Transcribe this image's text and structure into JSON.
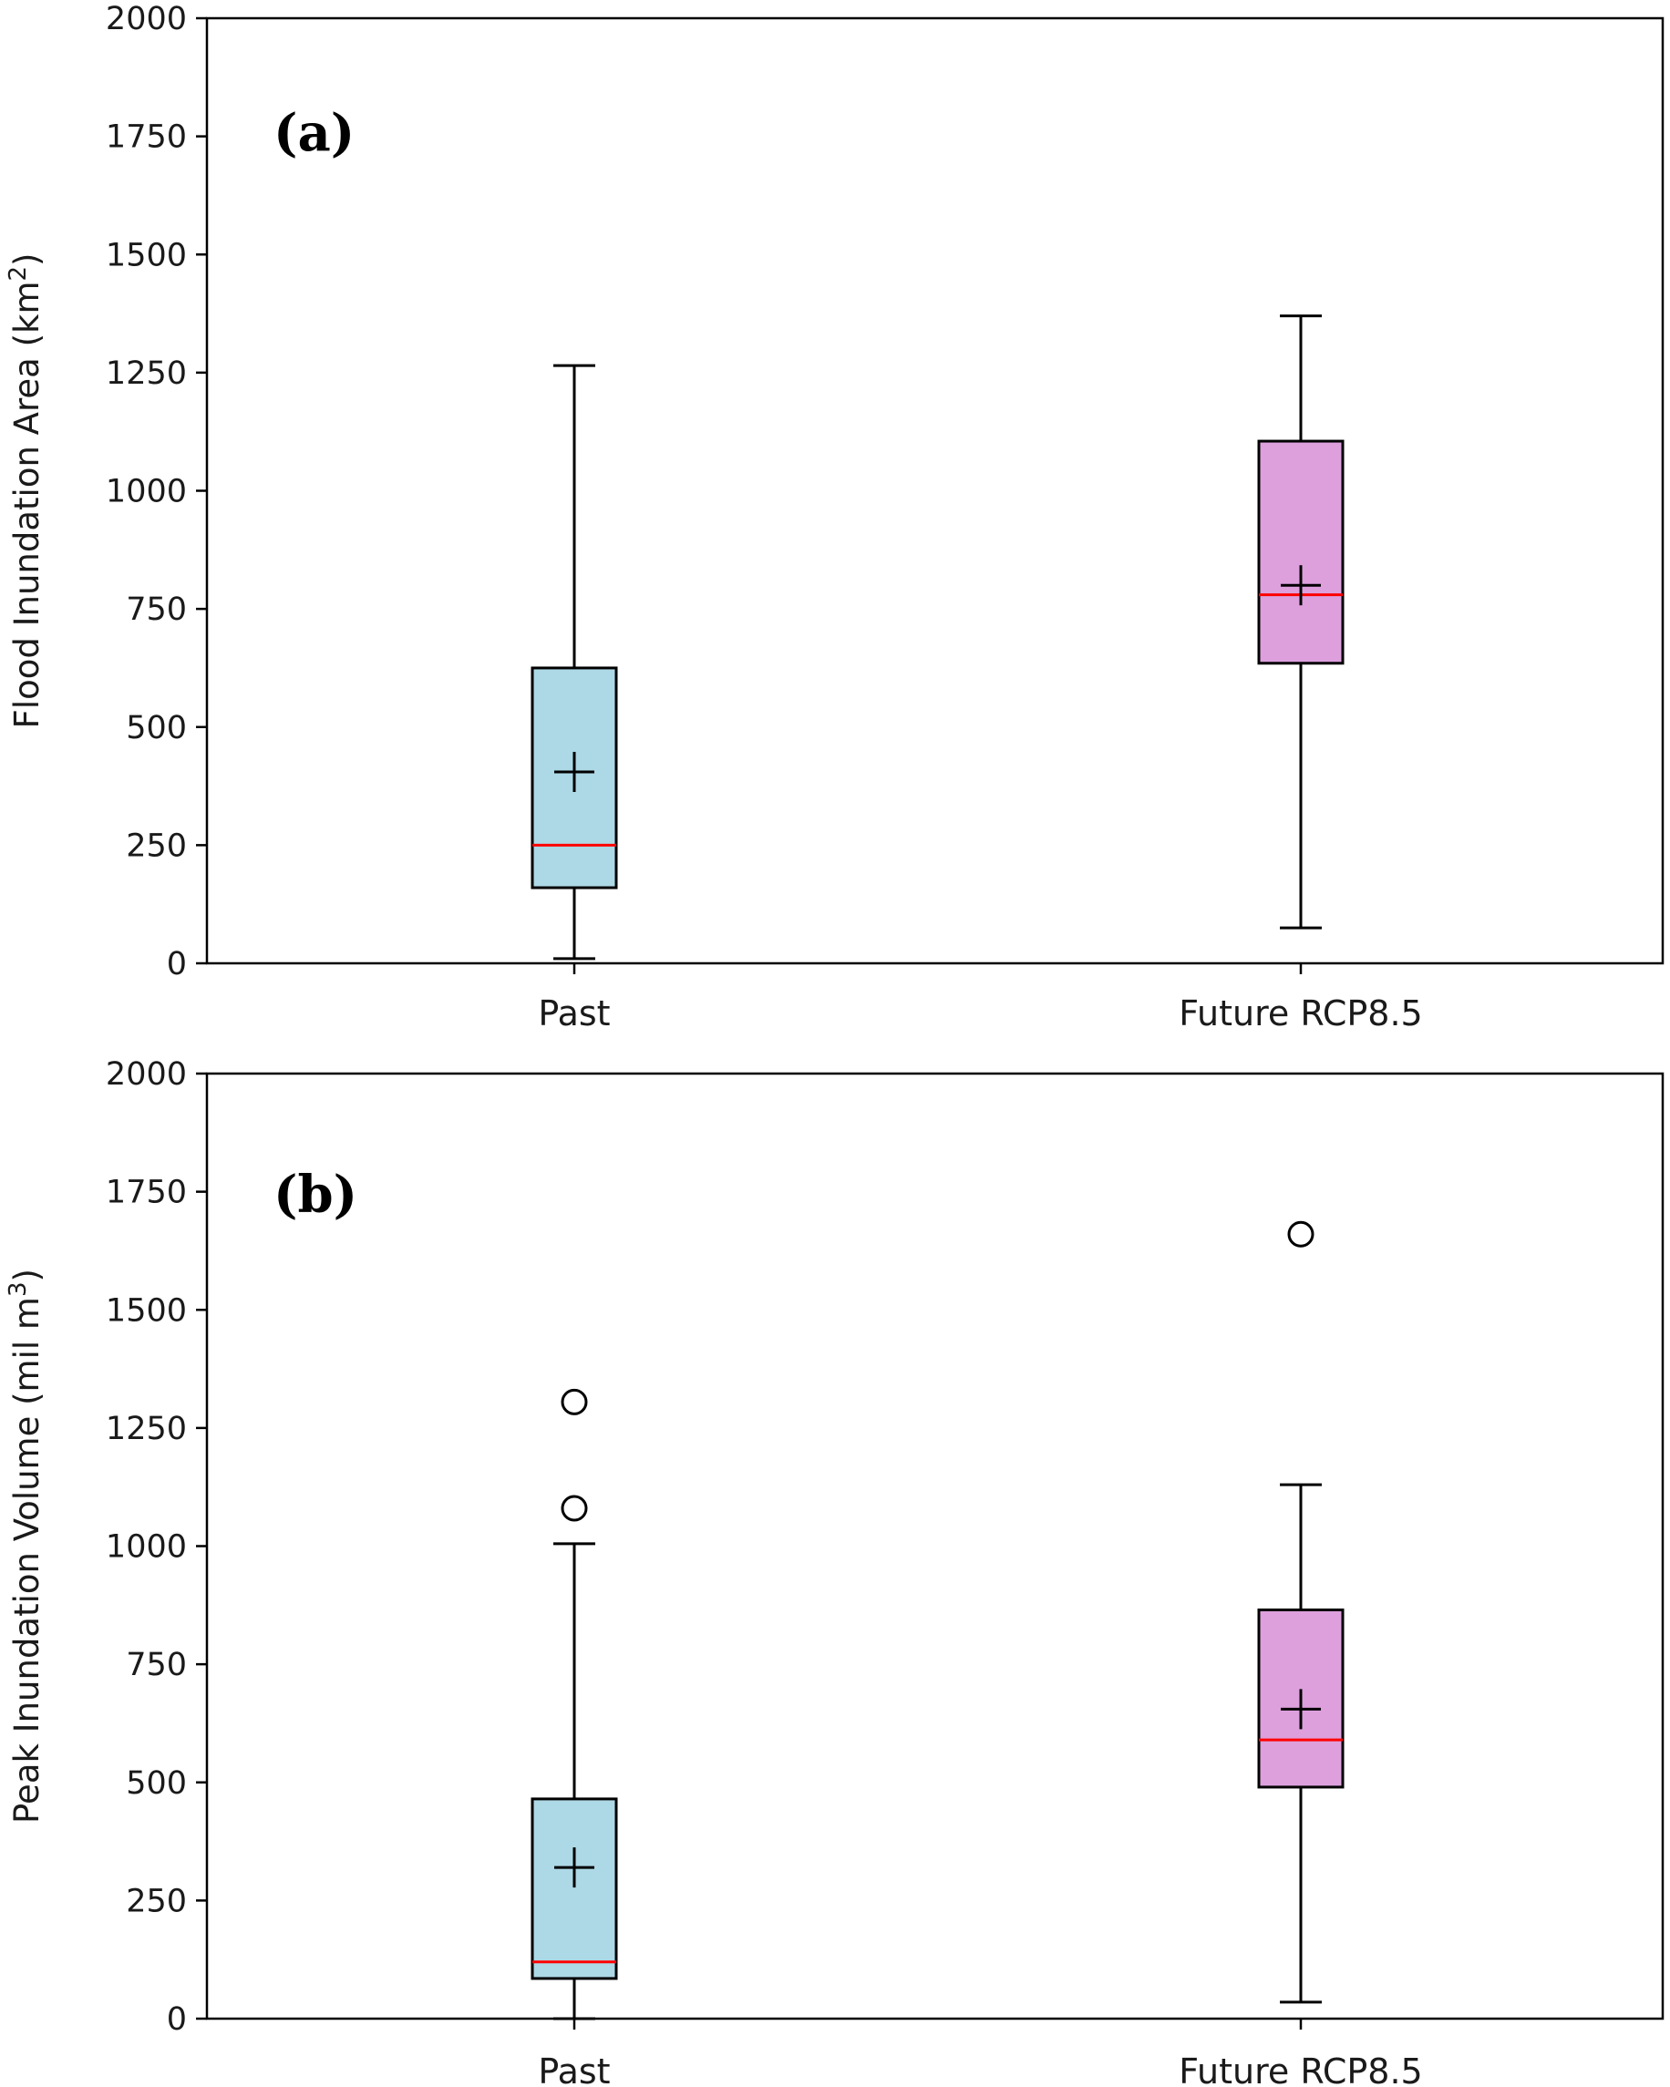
{
  "chart_data": [
    {
      "type": "box",
      "panel_label": "(a)",
      "ylabel": "Flood Inundation Area (km",
      "ylabel_sup": "2",
      "ylabel_end": ")",
      "ylim": [
        0,
        2000
      ],
      "yticks": [
        "0",
        "250",
        "500",
        "750",
        "1000",
        "1250",
        "1500",
        "1750",
        "2000"
      ],
      "categories": [
        "Past",
        "Future RCP8.5"
      ],
      "boxes": [
        {
          "name": "Past",
          "whisker_low": 10,
          "q1": 160,
          "median": 250,
          "q3": 625,
          "whisker_high": 1265,
          "mean": 405,
          "fliers": [],
          "color": "#add8e6"
        },
        {
          "name": "Future RCP8.5",
          "whisker_low": 75,
          "q1": 635,
          "median": 780,
          "q3": 1105,
          "whisker_high": 1370,
          "mean": 800,
          "fliers": [],
          "color": "#dda0dd"
        }
      ]
    },
    {
      "type": "box",
      "panel_label": "(b)",
      "ylabel": "Peak Inundation Volume (mil m",
      "ylabel_sup": "3",
      "ylabel_end": ")",
      "ylim": [
        0,
        2000
      ],
      "yticks": [
        "0",
        "250",
        "500",
        "750",
        "1000",
        "1250",
        "1500",
        "1750",
        "2000"
      ],
      "categories": [
        "Past",
        "Future RCP8.5"
      ],
      "boxes": [
        {
          "name": "Past",
          "whisker_low": 0,
          "q1": 85,
          "median": 120,
          "q3": 465,
          "whisker_high": 1005,
          "mean": 320,
          "fliers": [
            1080,
            1305
          ],
          "color": "#add8e6"
        },
        {
          "name": "Future RCP8.5",
          "whisker_low": 35,
          "q1": 490,
          "median": 590,
          "q3": 865,
          "whisker_high": 1130,
          "mean": 655,
          "fliers": [
            1660
          ],
          "color": "#dda0dd"
        }
      ]
    }
  ],
  "colors": {
    "median": "#ff0000",
    "line": "#000000"
  }
}
